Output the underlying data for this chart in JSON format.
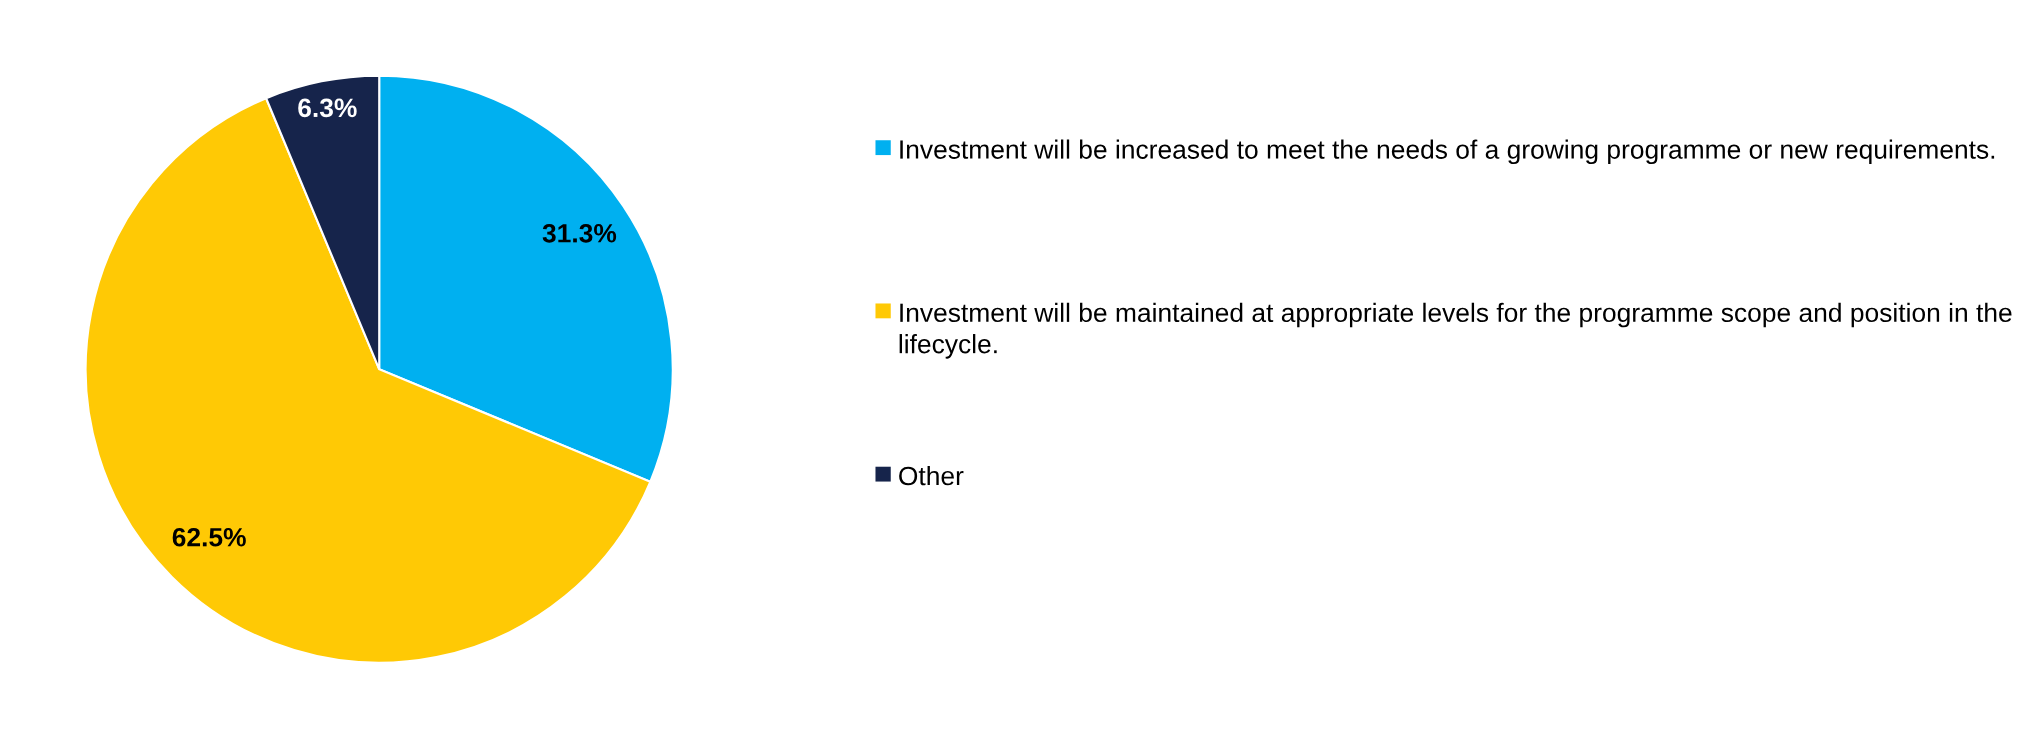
{
  "chart_data": {
    "type": "pie",
    "categories": [
      "Investment will be increased to meet the needs of a growing programme or new requirements.",
      "Investment will be maintained at appropriate levels for the programme scope and position in the lifecycle.",
      "Other"
    ],
    "values": [
      31.3,
      62.5,
      6.3
    ],
    "colors": [
      "#00b0f0",
      "#ffc905",
      "#16244b"
    ],
    "value_labels": [
      "31.3%",
      "62.5%",
      "6.3%"
    ],
    "legend": "right"
  }
}
